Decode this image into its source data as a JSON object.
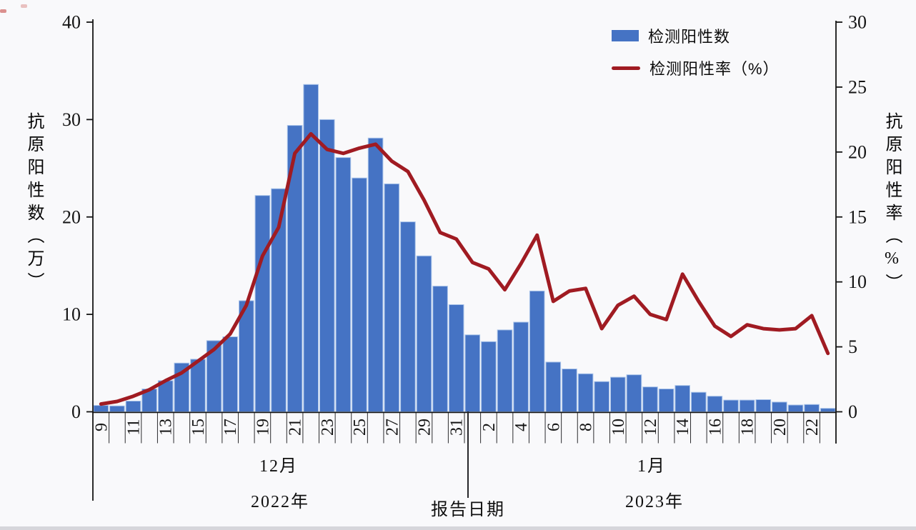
{
  "chart_data": {
    "type": "combo",
    "legend": [
      {
        "label": "检测阳性数",
        "type": "bar",
        "color": "#4573C4"
      },
      {
        "label": "检测阳性率（%）",
        "type": "line",
        "color": "#A01B22"
      }
    ],
    "left_axis": {
      "title": "抗原阳性数（万）",
      "min": 0,
      "max": 40,
      "ticks": [
        0,
        10,
        20,
        30,
        40
      ]
    },
    "right_axis": {
      "title": "抗原阳性率（%）",
      "min": 0,
      "max": 30,
      "ticks": [
        0,
        5,
        10,
        15,
        20,
        25,
        30
      ]
    },
    "x_axis": {
      "title": "报告日期",
      "groups": [
        {
          "month_label": "12月",
          "year_label": "2022年"
        },
        {
          "month_label": "1月",
          "year_label": "2023年"
        }
      ]
    },
    "days": [
      {
        "date": "12-09",
        "label": "9"
      },
      {
        "date": "12-10",
        "label": ""
      },
      {
        "date": "12-11",
        "label": "11"
      },
      {
        "date": "12-12",
        "label": ""
      },
      {
        "date": "12-13",
        "label": "13"
      },
      {
        "date": "12-14",
        "label": ""
      },
      {
        "date": "12-15",
        "label": "15"
      },
      {
        "date": "12-16",
        "label": ""
      },
      {
        "date": "12-17",
        "label": "17"
      },
      {
        "date": "12-18",
        "label": ""
      },
      {
        "date": "12-19",
        "label": "19"
      },
      {
        "date": "12-20",
        "label": ""
      },
      {
        "date": "12-21",
        "label": "21"
      },
      {
        "date": "12-22",
        "label": ""
      },
      {
        "date": "12-23",
        "label": "23"
      },
      {
        "date": "12-24",
        "label": ""
      },
      {
        "date": "12-25",
        "label": "25"
      },
      {
        "date": "12-26",
        "label": ""
      },
      {
        "date": "12-27",
        "label": "27"
      },
      {
        "date": "12-28",
        "label": ""
      },
      {
        "date": "12-29",
        "label": "29"
      },
      {
        "date": "12-30",
        "label": ""
      },
      {
        "date": "12-31",
        "label": "31"
      },
      {
        "date": "01-01",
        "label": ""
      },
      {
        "date": "01-02",
        "label": "2"
      },
      {
        "date": "01-03",
        "label": ""
      },
      {
        "date": "01-04",
        "label": "4"
      },
      {
        "date": "01-05",
        "label": ""
      },
      {
        "date": "01-06",
        "label": "6"
      },
      {
        "date": "01-07",
        "label": ""
      },
      {
        "date": "01-08",
        "label": "8"
      },
      {
        "date": "01-09",
        "label": ""
      },
      {
        "date": "01-10",
        "label": "10"
      },
      {
        "date": "01-11",
        "label": ""
      },
      {
        "date": "01-12",
        "label": "12"
      },
      {
        "date": "01-13",
        "label": ""
      },
      {
        "date": "01-14",
        "label": "14"
      },
      {
        "date": "01-15",
        "label": ""
      },
      {
        "date": "01-16",
        "label": "16"
      },
      {
        "date": "01-17",
        "label": ""
      },
      {
        "date": "01-18",
        "label": "18"
      },
      {
        "date": "01-19",
        "label": ""
      },
      {
        "date": "01-20",
        "label": "20"
      },
      {
        "date": "01-21",
        "label": ""
      },
      {
        "date": "01-22",
        "label": "22"
      },
      {
        "date": "01-23",
        "label": ""
      }
    ],
    "series": [
      {
        "name": "检测阳性数",
        "type": "bar",
        "axis": "left",
        "unit": "万",
        "color": "#4573C4",
        "edge_color": "#A9C3E9",
        "values": [
          0.65,
          0.6,
          1.1,
          2.35,
          3.2,
          5.0,
          5.4,
          7.3,
          7.7,
          11.4,
          22.2,
          22.9,
          29.4,
          33.6,
          30.0,
          26.1,
          24.0,
          28.1,
          23.4,
          19.5,
          16.0,
          12.9,
          11.0,
          7.9,
          7.2,
          8.4,
          9.2,
          12.4,
          5.1,
          4.4,
          3.9,
          3.1,
          3.55,
          3.8,
          2.55,
          2.35,
          2.7,
          2.0,
          1.6,
          1.2,
          1.2,
          1.25,
          1.0,
          0.7,
          0.75,
          0.35
        ]
      },
      {
        "name": "检测阳性率（%）",
        "type": "line",
        "axis": "right",
        "unit": "%",
        "color": "#A01B22",
        "values": [
          0.6,
          0.8,
          1.2,
          1.7,
          2.4,
          3.0,
          3.9,
          4.8,
          6.0,
          8.2,
          12.0,
          14.2,
          19.9,
          21.4,
          20.2,
          19.9,
          20.3,
          20.6,
          19.3,
          18.5,
          16.3,
          13.8,
          13.3,
          11.5,
          11.0,
          9.4,
          11.4,
          13.6,
          8.5,
          9.3,
          9.5,
          6.4,
          8.2,
          8.9,
          7.5,
          7.1,
          10.6,
          8.5,
          6.6,
          5.8,
          6.7,
          6.4,
          6.3,
          6.4,
          7.4,
          4.5
        ]
      }
    ]
  }
}
